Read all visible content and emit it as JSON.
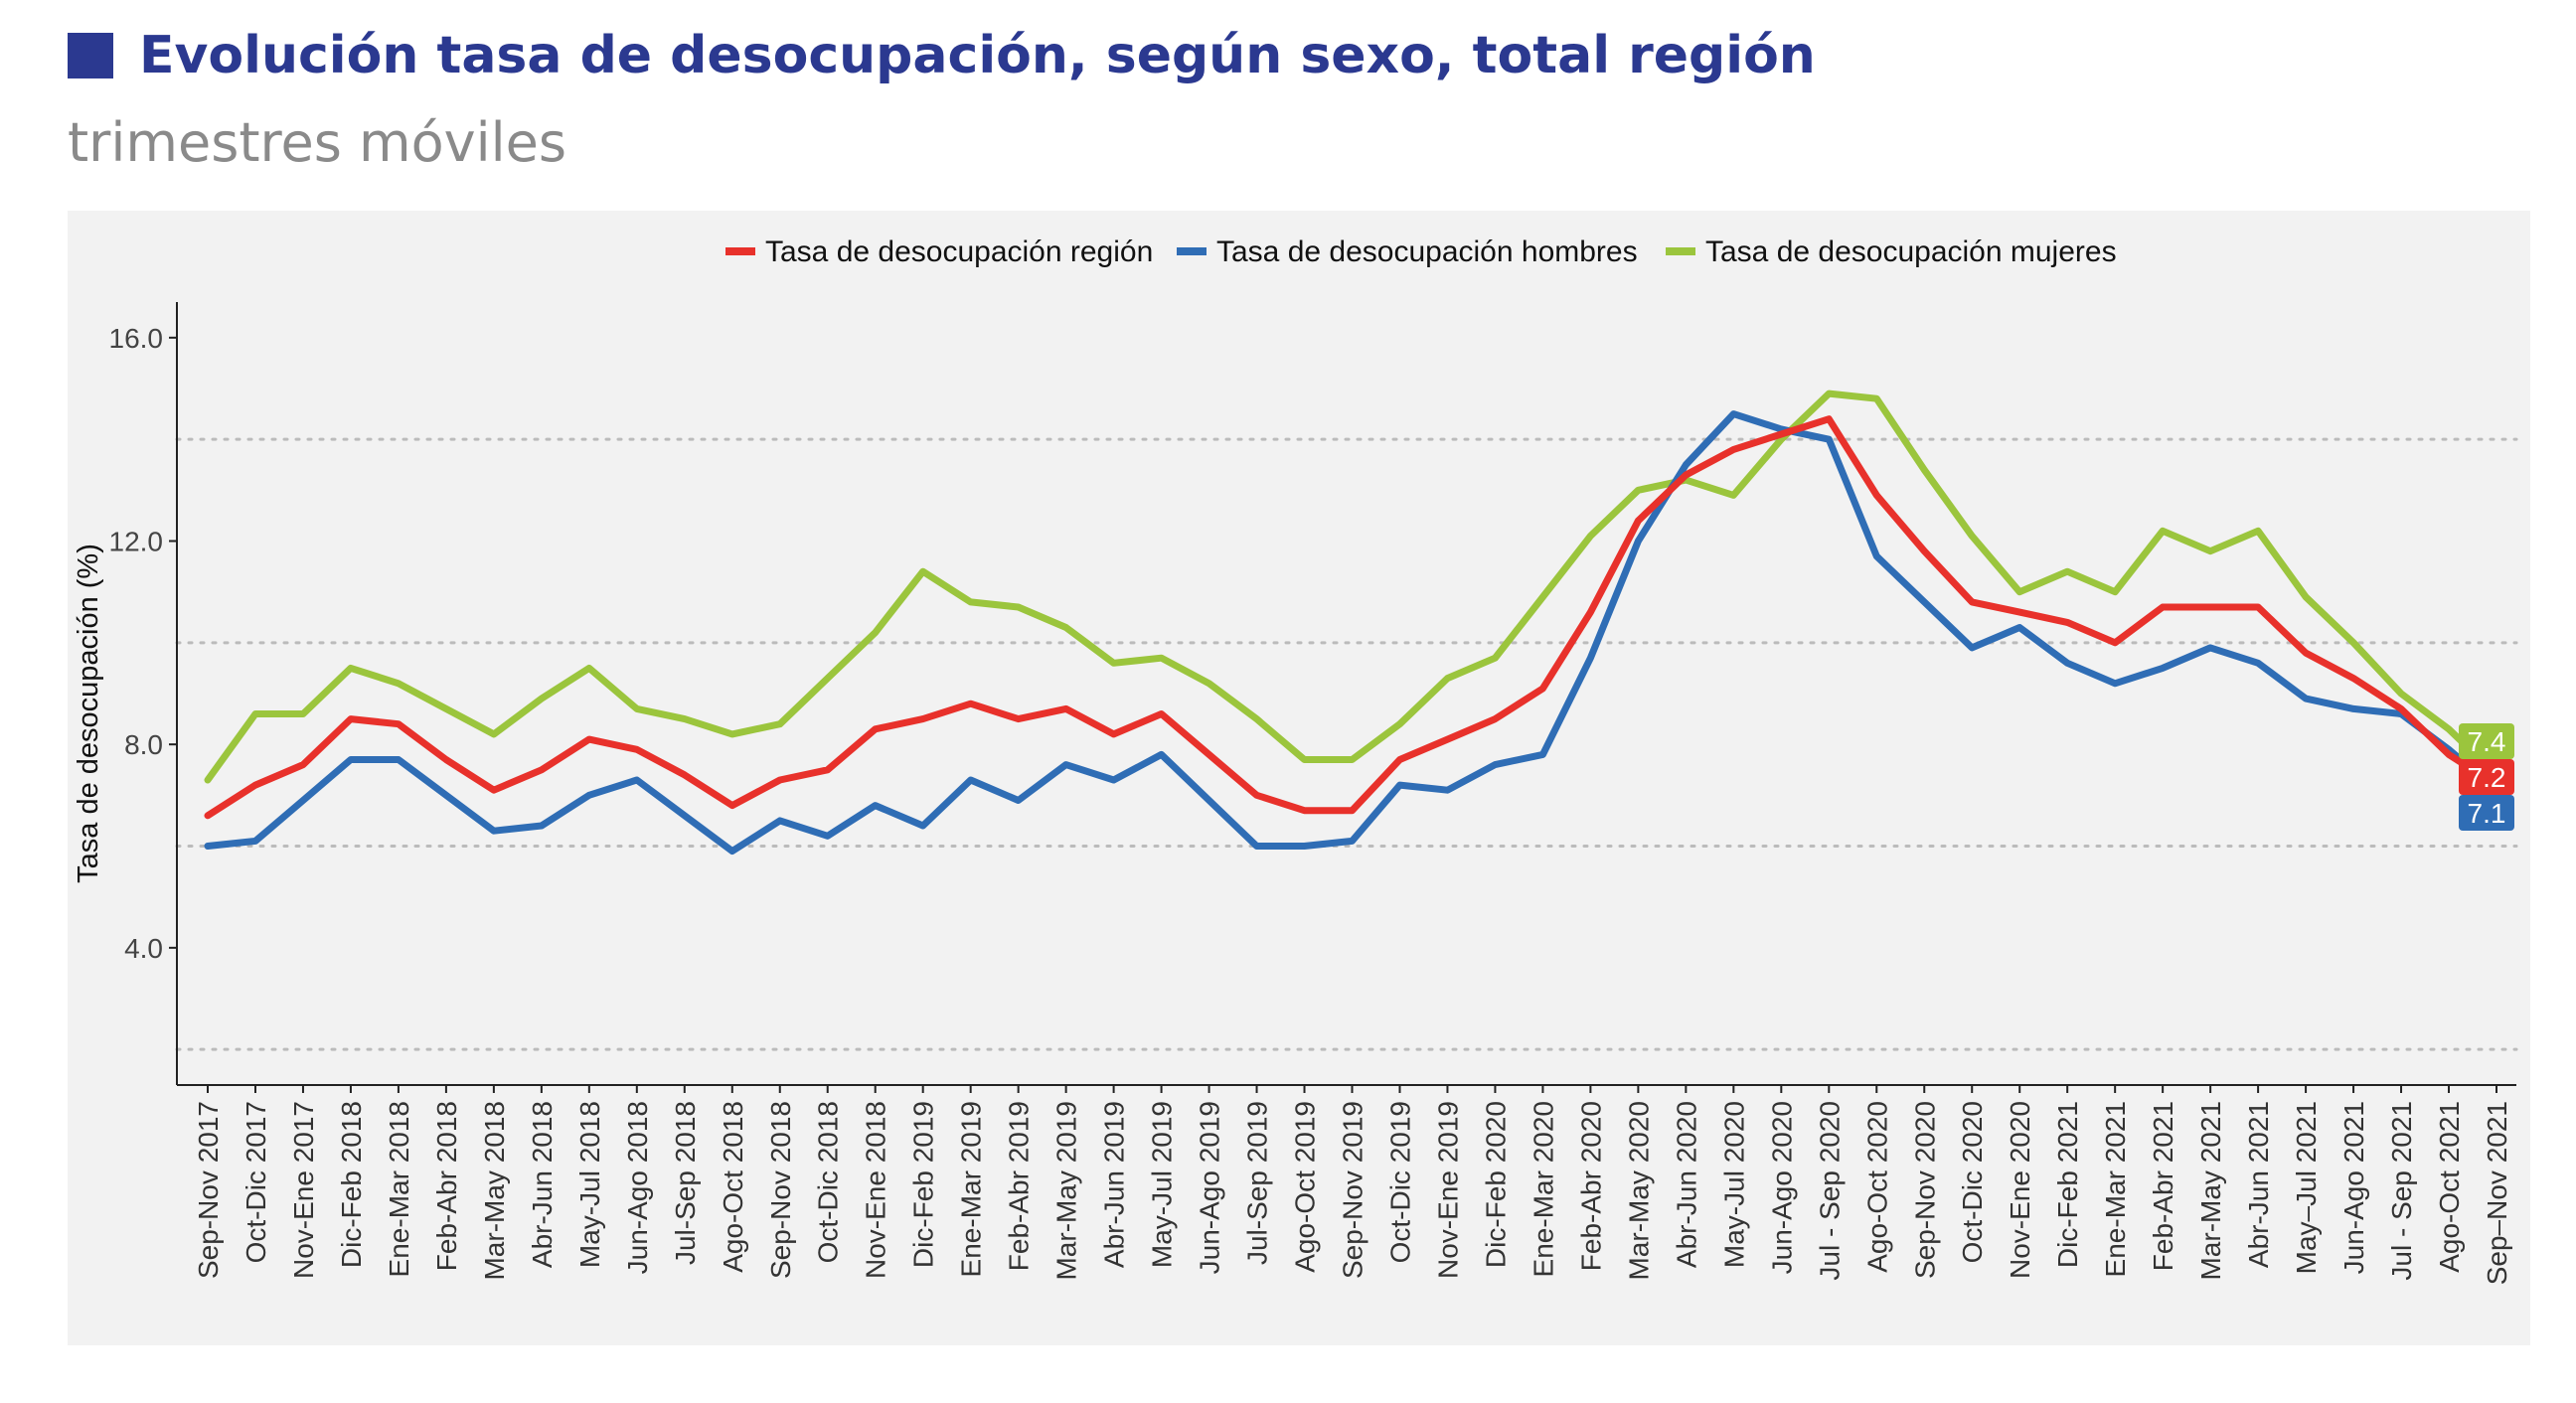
{
  "title": "Evolución tasa de desocupación, según sexo, total región",
  "subtitle": "trimestres móviles",
  "colors": {
    "title": "#2b3990",
    "panel_bg": "#f2f2f2",
    "region": "#e8312b",
    "hombres": "#2f6db5",
    "mujeres": "#9bc53d",
    "grid": "#bbbbbb"
  },
  "chart_data": {
    "type": "line",
    "ylabel": "Tasa de desocupación (%)",
    "xlabel": "",
    "ylim": [
      1.3,
      16.7
    ],
    "yticks": [
      4.0,
      8.0,
      12.0,
      16.0
    ],
    "ytick_labels": [
      "4.0",
      "8.0",
      "12.0",
      "16.0"
    ],
    "dotted_gridlines": [
      2,
      6,
      10,
      14
    ],
    "legend_position": "top",
    "categories": [
      "Sep-Nov 2017",
      "Oct-Dic 2017",
      "Nov-Ene 2017",
      "Dic-Feb 2018",
      "Ene-Mar 2018",
      "Feb-Abr 2018",
      "Mar-May 2018",
      "Abr-Jun 2018",
      "May-Jul 2018",
      "Jun-Ago 2018",
      "Jul-Sep 2018",
      "Ago-Oct 2018",
      "Sep-Nov 2018",
      "Oct-Dic 2018",
      "Nov-Ene 2018",
      "Dic-Feb 2019",
      "Ene-Mar 2019",
      "Feb-Abr 2019",
      "Mar-May 2019",
      "Abr-Jun 2019",
      "May-Jul 2019",
      "Jun-Ago 2019",
      "Jul-Sep 2019",
      "Ago-Oct 2019",
      "Sep-Nov 2019",
      "Oct-Dic 2019",
      "Nov-Ene 2019",
      "Dic-Feb 2020",
      "Ene-Mar 2020",
      "Feb-Abr 2020",
      "Mar-May 2020",
      "Abr-Jun 2020",
      "May-Jul 2020",
      "Jun-Ago 2020",
      "Jul - Sep 2020",
      "Ago-Oct 2020",
      "Sep-Nov 2020",
      "Oct-Dic 2020",
      "Nov-Ene 2020",
      "Dic-Feb 2021",
      "Ene-Mar 2021",
      "Feb-Abr 2021",
      "Mar-May 2021",
      "Abr-Jun 2021",
      "May–Jul 2021",
      "Jun-Ago 2021",
      "Jul - Sep 2021",
      "Ago-Oct 2021",
      "Sep–Nov 2021"
    ],
    "series": [
      {
        "name": "Tasa de desocupación región",
        "key": "region",
        "end_label": "7.2",
        "values": [
          6.6,
          7.2,
          7.6,
          8.5,
          8.4,
          7.7,
          7.1,
          7.5,
          8.1,
          7.9,
          7.4,
          6.8,
          7.3,
          7.5,
          8.3,
          8.5,
          8.8,
          8.5,
          8.7,
          8.2,
          8.6,
          7.8,
          7.0,
          6.7,
          6.7,
          7.7,
          8.1,
          8.5,
          9.1,
          10.6,
          12.4,
          13.3,
          13.8,
          14.1,
          14.4,
          12.9,
          11.8,
          10.8,
          10.6,
          10.4,
          10.0,
          10.7,
          10.7,
          10.7,
          9.8,
          9.3,
          8.7,
          7.8,
          7.2
        ]
      },
      {
        "name": "Tasa de desocupación hombres",
        "key": "hombres",
        "end_label": "7.1",
        "values": [
          6.0,
          6.1,
          6.9,
          7.7,
          7.7,
          7.0,
          6.3,
          6.4,
          7.0,
          7.3,
          6.6,
          5.9,
          6.5,
          6.2,
          6.8,
          6.4,
          7.3,
          6.9,
          7.6,
          7.3,
          7.8,
          6.9,
          6.0,
          6.0,
          6.1,
          7.2,
          7.1,
          7.6,
          7.8,
          9.7,
          12.0,
          13.5,
          14.5,
          14.2,
          14.0,
          11.7,
          10.8,
          9.9,
          10.3,
          9.6,
          9.2,
          9.5,
          9.9,
          9.6,
          8.9,
          8.7,
          8.6,
          7.9,
          7.1
        ]
      },
      {
        "name": "Tasa de desocupación mujeres",
        "key": "mujeres",
        "end_label": "7.4",
        "values": [
          7.3,
          8.6,
          8.6,
          9.5,
          9.2,
          8.7,
          8.2,
          8.9,
          9.5,
          8.7,
          8.5,
          8.2,
          8.4,
          9.3,
          10.2,
          11.4,
          10.8,
          10.7,
          10.3,
          9.6,
          9.7,
          9.2,
          8.5,
          7.7,
          7.7,
          8.4,
          9.3,
          9.7,
          10.9,
          12.1,
          13.0,
          13.2,
          12.9,
          14.0,
          14.9,
          14.8,
          13.4,
          12.1,
          11.0,
          11.4,
          11.0,
          12.2,
          11.8,
          12.2,
          10.9,
          10.0,
          9.0,
          8.3,
          7.4
        ]
      }
    ]
  }
}
